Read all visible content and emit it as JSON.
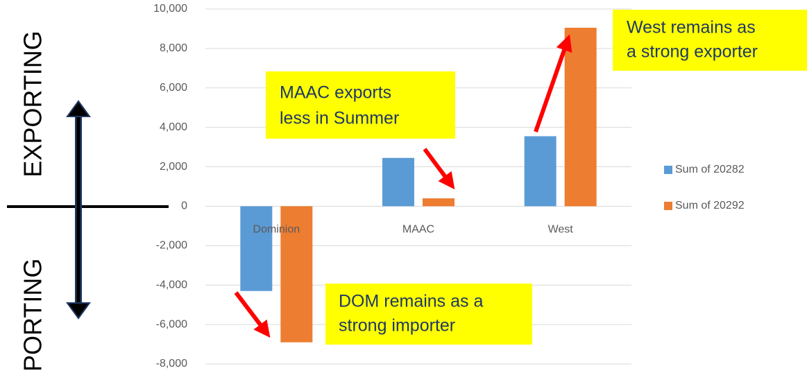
{
  "chart_data": {
    "type": "bar",
    "categories": [
      "Dominion",
      "MAAC",
      "West"
    ],
    "series": [
      {
        "name": "Sum of 20282",
        "color": "#5b9bd5",
        "values": [
          -4300,
          2450,
          3550
        ]
      },
      {
        "name": "Sum of 20292",
        "color": "#ed7d31",
        "values": [
          -6900,
          400,
          9050
        ]
      }
    ],
    "ylim": [
      -8000,
      10000
    ],
    "yticks": [
      {
        "value": -8000,
        "label": "-8,000"
      },
      {
        "value": -6000,
        "label": "-6,000"
      },
      {
        "value": -4000,
        "label": "-4,000"
      },
      {
        "value": -2000,
        "label": "-2,000"
      },
      0,
      {
        "value": 2000,
        "label": "2,000"
      },
      {
        "value": 4000,
        "label": "4,000"
      },
      {
        "value": 6000,
        "label": "6,000"
      },
      {
        "value": 8000,
        "label": "8,000"
      },
      {
        "value": 10000,
        "label": "10,000"
      }
    ],
    "grid": true,
    "legend": "right",
    "annotations": [
      "MAAC exports less in Summer",
      "West remains as a strong exporter",
      "DOM remains as a strong importer"
    ],
    "side_labels": [
      "EXPORTING",
      "PORTING"
    ]
  }
}
